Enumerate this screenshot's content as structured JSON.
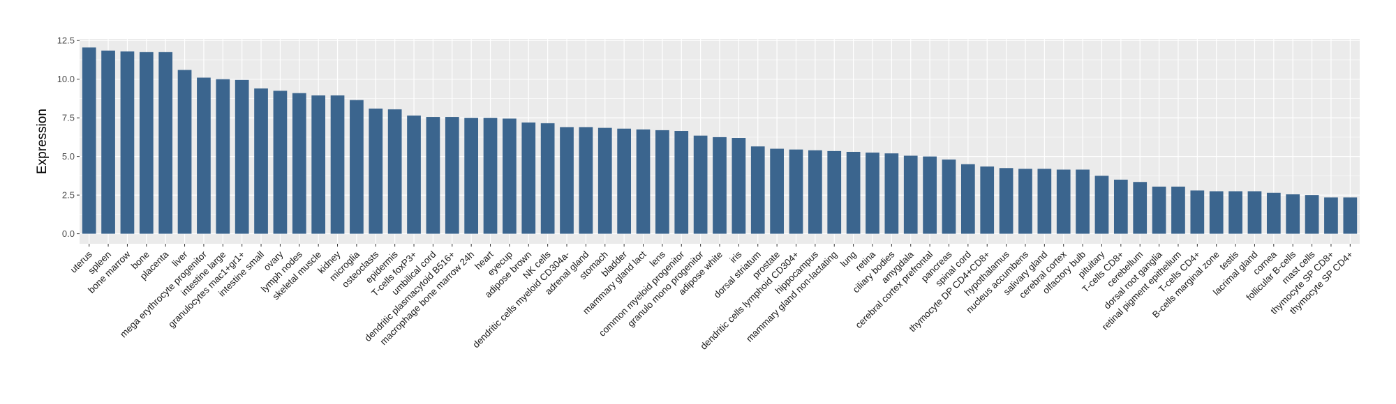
{
  "chart_data": {
    "type": "bar",
    "title": "",
    "xlabel": "",
    "ylabel": "Expression",
    "ylim": [
      -0.65,
      12.6
    ],
    "yticks": [
      0.0,
      2.5,
      5.0,
      7.5,
      10.0,
      12.5
    ],
    "ytick_labels": [
      "0.0",
      "2.5",
      "5.0",
      "7.5",
      "10.0",
      "12.5"
    ],
    "grid": true,
    "legend": "none",
    "colors": {
      "bar": "#3b658e",
      "panel": "#ebebeb",
      "grid": "#ffffff"
    },
    "categories": [
      "uterus",
      "spleen",
      "bone marrow",
      "bone",
      "placenta",
      "liver",
      "mega erythrocyte progenitor",
      "intestine large",
      "granulocytes mac1+gr1+",
      "intestine small",
      "ovary",
      "lymph nodes",
      "skeletal muscle",
      "kidney",
      "microglia",
      "osteoclasts",
      "epidermis",
      "T-cells foxP3+",
      "umbilical cord",
      "dendritic plasmacytoid B516+",
      "macrophage bone marrow 24h",
      "heart",
      "eyecup",
      "adipose brown",
      "NK cells",
      "dendritic cells myeloid CD304a-",
      "adrenal gland",
      "stomach",
      "bladder",
      "mammary gland lact",
      "lens",
      "common myeloid progenitor",
      "granulo mono progenitor",
      "adipose white",
      "iris",
      "dorsal striatum",
      "prostate",
      "dendritic cells lymphoid CD304+",
      "hippocampus",
      "mammary gland non-lactating",
      "lung",
      "retina",
      "ciliary bodies",
      "amygdala",
      "cerebral cortex prefrontal",
      "pancreas",
      "spinal cord",
      "thymocyte DP CD4+CD8+",
      "hypothalamus",
      "nucleus accumbens",
      "salivary gland",
      "cerebral cortex",
      "olfactory bulb",
      "pituitary",
      "T-cells CD8+",
      "cerebellum",
      "dorsal root ganglia",
      "retinal pigment epithelium",
      "T-cells CD4+",
      "B-cells marginal zone",
      "testis",
      "lacrimal gland",
      "cornea",
      "follicular B-cells",
      "mast cells",
      "thymocyte SP CD8+",
      "thymocyte SP CD4+"
    ],
    "values": [
      12.05,
      11.85,
      11.8,
      11.75,
      11.75,
      10.6,
      10.1,
      10.0,
      9.95,
      9.4,
      9.25,
      9.1,
      8.95,
      8.95,
      8.65,
      8.1,
      8.05,
      7.65,
      7.55,
      7.55,
      7.5,
      7.5,
      7.45,
      7.2,
      7.15,
      6.9,
      6.9,
      6.85,
      6.8,
      6.75,
      6.7,
      6.65,
      6.35,
      6.25,
      6.2,
      5.65,
      5.5,
      5.45,
      5.4,
      5.35,
      5.3,
      5.25,
      5.2,
      5.05,
      5.0,
      4.8,
      4.5,
      4.35,
      4.25,
      4.2,
      4.2,
      4.15,
      4.15,
      3.75,
      3.5,
      3.35,
      3.05,
      3.05,
      2.8,
      2.75,
      2.75,
      2.75,
      2.65,
      2.55,
      2.5,
      2.35,
      2.35
    ]
  }
}
